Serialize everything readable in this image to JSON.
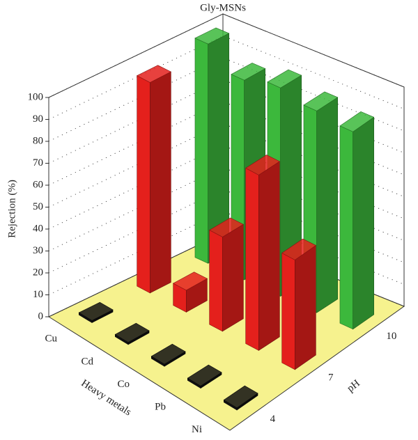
{
  "chart_data": {
    "type": "bar3d",
    "title": "Gly-MSNs",
    "z_label": "Rejection (%)",
    "x_label": "Heavy metals",
    "y_label": "pH",
    "categories": [
      "Cu",
      "Cd",
      "Co",
      "Pb",
      "Ni"
    ],
    "series": [
      {
        "name": "4",
        "color": "#111111",
        "values": [
          1,
          1,
          1,
          1,
          1
        ]
      },
      {
        "name": "7",
        "color": "#e4201c",
        "values": [
          96,
          10,
          43,
          80,
          50
        ]
      },
      {
        "name": "10",
        "color": "#3cb83c",
        "values": [
          100,
          91,
          95,
          92,
          90
        ]
      }
    ],
    "zlim": [
      0,
      100
    ],
    "zticks": [
      0,
      10,
      20,
      30,
      40,
      50,
      60,
      70,
      80,
      90,
      100
    ],
    "grid": true,
    "floor_color": "#f6f28e"
  }
}
